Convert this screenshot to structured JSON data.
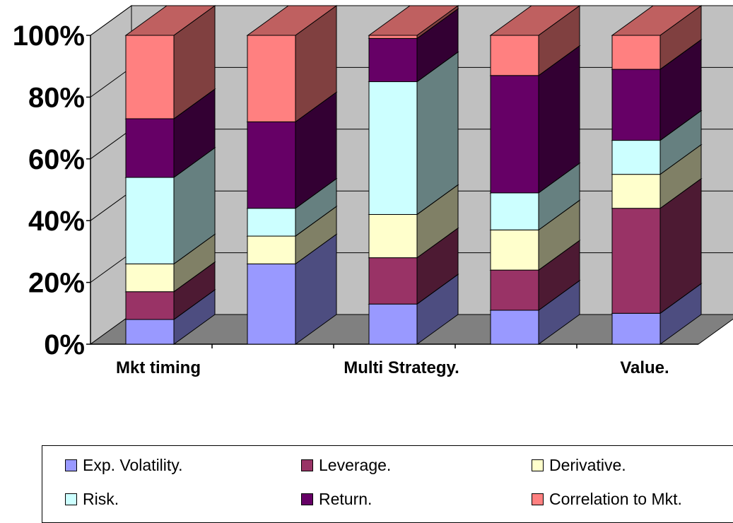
{
  "chart_data": {
    "type": "bar",
    "stacked": true,
    "percent_stacked": true,
    "three_d": true,
    "categories": [
      "Mkt timing",
      "",
      "Multi Strategy.",
      "",
      "Value."
    ],
    "y_tick_labels": [
      "0%",
      "20%",
      "40%",
      "60%",
      "80%",
      "100%"
    ],
    "ylim": [
      0,
      100
    ],
    "grid": true,
    "legend_position": "bottom",
    "series": [
      {
        "name": "Exp. Volatility.",
        "color": "#9999ff",
        "values": [
          8,
          26,
          13,
          11,
          10
        ]
      },
      {
        "name": "Leverage.",
        "color": "#993366",
        "values": [
          9,
          0,
          15,
          13,
          34
        ]
      },
      {
        "name": "Derivative.",
        "color": "#ffffcc",
        "values": [
          9,
          9,
          14,
          13,
          11
        ]
      },
      {
        "name": "Risk.",
        "color": "#ccffff",
        "values": [
          28,
          9,
          43,
          12,
          11
        ]
      },
      {
        "name": "Return.",
        "color": "#660066",
        "values": [
          19,
          28,
          14,
          38,
          23
        ]
      },
      {
        "name": "Correlation to Mkt.",
        "color": "#ff8080",
        "values": [
          27,
          28,
          1,
          13,
          11
        ]
      }
    ]
  }
}
